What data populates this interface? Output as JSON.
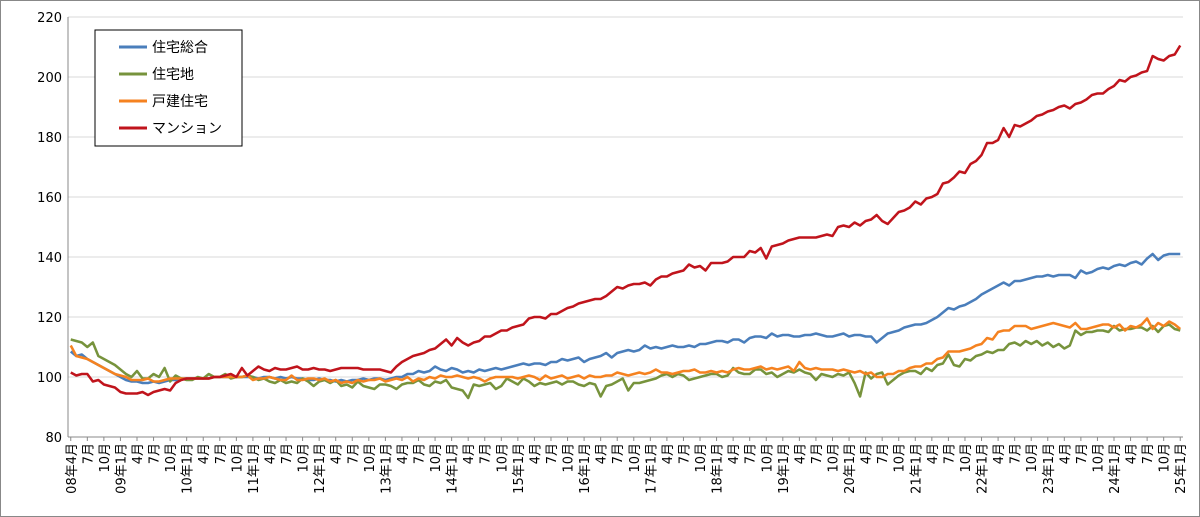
{
  "chart_data": {
    "type": "line",
    "categories": [
      "08年4月",
      null,
      null,
      "7月",
      null,
      null,
      "10月",
      null,
      null,
      "09年1月",
      null,
      null,
      "4月",
      null,
      null,
      "7月",
      null,
      null,
      "10月",
      null,
      null,
      "10年1月",
      null,
      null,
      "4月",
      null,
      null,
      "7月",
      null,
      null,
      "10月",
      null,
      null,
      "11年1月",
      null,
      null,
      "4月",
      null,
      null,
      "7月",
      null,
      null,
      "10月",
      null,
      null,
      "12年1月",
      null,
      null,
      "4月",
      null,
      null,
      "7月",
      null,
      null,
      "10月",
      null,
      null,
      "13年1月",
      null,
      null,
      "4月",
      null,
      null,
      "7月",
      null,
      null,
      "10月",
      null,
      null,
      "14年1月",
      null,
      null,
      "4月",
      null,
      null,
      "7月",
      null,
      null,
      "10月",
      null,
      null,
      "15年1月",
      null,
      null,
      "4月",
      null,
      null,
      "7月",
      null,
      null,
      "10月",
      null,
      null,
      "16年1月",
      null,
      null,
      "4月",
      null,
      null,
      "7月",
      null,
      null,
      "10月",
      null,
      null,
      "17年1月",
      null,
      null,
      "4月",
      null,
      null,
      "7月",
      null,
      null,
      "10月",
      null,
      null,
      "18年1月",
      null,
      null,
      "4月",
      null,
      null,
      "7月",
      null,
      null,
      "10月",
      null,
      null,
      "19年1月",
      null,
      null,
      "4月",
      null,
      null,
      "7月",
      null,
      null,
      "10月",
      null,
      null,
      "20年1月",
      null,
      null,
      "4月",
      null,
      null,
      "7月",
      null,
      null,
      "10月",
      null,
      null,
      "21年1月",
      null,
      null,
      "4月",
      null,
      null,
      "7月",
      null,
      null,
      "10月",
      null,
      null,
      "22年1月",
      null,
      null,
      "4月",
      null,
      null,
      "7月",
      null,
      null,
      "10月",
      null,
      null,
      "23年1月",
      null,
      null,
      "4月",
      null,
      null,
      "7月",
      null,
      null,
      "10月",
      null,
      null,
      "24年1月",
      null,
      null,
      "4月",
      null,
      null,
      "7月",
      null,
      null,
      "10月",
      null,
      null,
      "25年1月"
    ],
    "series": [
      {
        "name": "住宅総合",
        "color": "#4a7ebb",
        "values": [
          108.5,
          107,
          107.5,
          106,
          105,
          104,
          103,
          102,
          101,
          100,
          99,
          98.5,
          98.5,
          98,
          98,
          98.5,
          98,
          98.5,
          99,
          99,
          99.5,
          99.5,
          99.5,
          99.5,
          99.5,
          99.5,
          100,
          100,
          100,
          100,
          100,
          100,
          100,
          100,
          99.5,
          100,
          100,
          99.5,
          100,
          99.5,
          100,
          99.5,
          99.5,
          99,
          99,
          99.5,
          99,
          99,
          98.5,
          99,
          98.5,
          99,
          99,
          99.5,
          99,
          99.5,
          99.5,
          99,
          99.5,
          100,
          100,
          101,
          101,
          102,
          101.5,
          102,
          103.5,
          102.5,
          102,
          103,
          102.5,
          101.5,
          102,
          101.5,
          102.5,
          102,
          102.5,
          103,
          102.5,
          103,
          103.5,
          104,
          104.5,
          104,
          104.5,
          104.5,
          104,
          105,
          105,
          106,
          105.5,
          106,
          106.5,
          105,
          106,
          106.5,
          107,
          108,
          106.5,
          108,
          108.5,
          109,
          108.5,
          109,
          110.5,
          109.5,
          110,
          109.5,
          110,
          110.5,
          110,
          110,
          110.5,
          110,
          111,
          111,
          111.5,
          112,
          112,
          111.5,
          112.5,
          112.5,
          111.5,
          113,
          113.5,
          113.5,
          113,
          114.5,
          113.5,
          114,
          114,
          113.5,
          113.5,
          114,
          114,
          114.5,
          114,
          113.5,
          113.5,
          114,
          114.5,
          113.5,
          114,
          114,
          113.5,
          113.5,
          111.5,
          113,
          114.5,
          115,
          115.5,
          116.5,
          117,
          117.5,
          117.5,
          118,
          119,
          120,
          121.5,
          123,
          122.5,
          123.5,
          124,
          125,
          126,
          127.5,
          128.5,
          129.5,
          130.5,
          131.5,
          130.5,
          132,
          132,
          132.5,
          133,
          133.5,
          133.5,
          134,
          133.5,
          134,
          134,
          134,
          133,
          135.5,
          134.5,
          135,
          136,
          136.5,
          136,
          137,
          137.5,
          137,
          138,
          138.5,
          137.5,
          139.5,
          141,
          139,
          140.5,
          141,
          141,
          141
        ]
      },
      {
        "name": "住宅地",
        "color": "#77933c",
        "values": [
          112.5,
          112,
          111.5,
          110,
          111.5,
          107,
          106,
          105,
          104,
          102.5,
          101,
          100,
          102,
          99.5,
          99.5,
          101,
          100,
          103,
          98.5,
          100.5,
          99.5,
          99,
          99,
          100,
          99.5,
          101,
          100,
          100,
          101,
          99.5,
          100,
          100,
          100.5,
          100,
          99,
          99.5,
          98.5,
          98,
          99,
          98,
          98.5,
          98,
          99.5,
          98.5,
          97,
          98.5,
          99,
          98,
          99,
          97,
          97.5,
          96.5,
          98.5,
          97,
          96.5,
          96,
          97.5,
          97.5,
          97,
          96,
          97.5,
          98,
          98,
          99,
          97.5,
          97,
          98.5,
          98,
          99,
          96.5,
          96,
          95.5,
          93,
          97.5,
          97,
          97.5,
          98,
          96,
          97,
          99.5,
          98.5,
          97.5,
          99.5,
          98.5,
          97,
          98,
          97.5,
          98,
          98.5,
          97.5,
          98.5,
          98.5,
          97.5,
          97,
          98,
          97.5,
          93.5,
          97,
          97.5,
          98.5,
          99.5,
          95.5,
          98,
          98,
          98.5,
          99,
          99.5,
          100.5,
          101,
          100,
          101,
          100.5,
          99,
          99.5,
          100,
          100.5,
          101,
          101,
          100,
          100.5,
          103,
          101.5,
          101,
          101,
          102.5,
          102.5,
          101,
          101.5,
          100,
          101,
          102,
          101.5,
          102.5,
          101.5,
          101,
          99,
          101,
          100.5,
          100,
          101,
          100.5,
          101.5,
          98,
          93.5,
          101.5,
          99.5,
          101,
          101.5,
          97.5,
          99,
          100.5,
          101.5,
          102,
          102,
          101,
          103,
          102,
          104,
          104.5,
          107.5,
          104,
          103.5,
          106,
          105.5,
          107,
          107.5,
          108.5,
          108,
          109,
          109,
          111,
          111.5,
          110.5,
          112,
          111,
          112,
          110.5,
          111.5,
          110,
          111,
          109.5,
          110.5,
          115.5,
          114,
          115,
          115,
          115.5,
          115.5,
          115,
          117,
          115.5,
          116,
          116,
          116.5,
          116.5,
          115.5,
          117,
          115,
          117,
          117.5,
          116,
          115.5
        ]
      },
      {
        "name": "戸建住宅",
        "color": "#f58220",
        "values": [
          110.5,
          107,
          106.5,
          106,
          105,
          104,
          103,
          102,
          101,
          100.5,
          100,
          99,
          99,
          99,
          99.5,
          98.5,
          98.5,
          99,
          99.5,
          99.5,
          99.5,
          99.5,
          99.5,
          99.5,
          99.5,
          99.5,
          100,
          100,
          100,
          100,
          100,
          100,
          100.5,
          99,
          99.5,
          99.5,
          100,
          99.5,
          99,
          99,
          100.5,
          99,
          99,
          99.5,
          99.5,
          99,
          99.5,
          98.5,
          99,
          98,
          98.5,
          98,
          99,
          98.5,
          99,
          99,
          99.5,
          98.5,
          99,
          99.5,
          99,
          100,
          98.5,
          99.5,
          99,
          100,
          99.5,
          100.5,
          100,
          100,
          100.5,
          100,
          99.5,
          100,
          99.5,
          98.5,
          99.5,
          100,
          100,
          100,
          100,
          99.5,
          100,
          100.5,
          100,
          99,
          100.5,
          99.5,
          100,
          100.5,
          99.5,
          100,
          100.5,
          99.5,
          100.5,
          100,
          100,
          100.5,
          100.5,
          101.5,
          101,
          100.5,
          101,
          101.5,
          101,
          101.5,
          102.5,
          101.5,
          101.5,
          101,
          101.5,
          102,
          102,
          102.5,
          101.5,
          101.5,
          102,
          101.5,
          102,
          101.5,
          102.5,
          103,
          102.5,
          102.5,
          103,
          103.5,
          102.5,
          103,
          102.5,
          103,
          103.5,
          102,
          105,
          103,
          102.5,
          103,
          102.5,
          102.5,
          102.5,
          102,
          102.5,
          102,
          101.5,
          102,
          101,
          101.5,
          100,
          100,
          101,
          101,
          102,
          102,
          103,
          103.5,
          103.5,
          104.5,
          104.5,
          106,
          106.5,
          108.5,
          108.5,
          108.5,
          109,
          109.5,
          110.5,
          111,
          113,
          112.5,
          115,
          115.5,
          115.5,
          117,
          117,
          117,
          116,
          116.5,
          117,
          117.5,
          118,
          117.5,
          117,
          116.5,
          118,
          116,
          116,
          116.5,
          117,
          117.5,
          117.5,
          116.5,
          117.5,
          115.5,
          117,
          116.5,
          117.5,
          119.5,
          116,
          118,
          117,
          118.5,
          117.5,
          116
        ]
      },
      {
        "name": "マンション",
        "color": "#c0141c",
        "values": [
          101.5,
          100.5,
          101,
          101,
          98.5,
          99,
          97.5,
          97,
          96.5,
          95,
          94.5,
          94.5,
          94.5,
          95,
          94,
          95,
          95.5,
          96,
          95.5,
          98,
          99,
          99.5,
          99.5,
          99.5,
          99.5,
          99.5,
          100,
          100,
          100.5,
          101,
          100,
          103,
          100.5,
          102,
          103.5,
          102.5,
          102,
          103,
          102.5,
          102.5,
          103,
          103.5,
          102.5,
          102.5,
          103,
          102.5,
          102.5,
          102,
          102.5,
          103,
          103,
          103,
          103,
          102.5,
          102.5,
          102.5,
          102.5,
          102,
          101.5,
          103.5,
          105,
          106,
          107,
          107.5,
          108,
          109,
          109.5,
          111,
          112.5,
          110.5,
          113,
          111.5,
          110.5,
          111.5,
          112,
          113.5,
          113.5,
          114.5,
          115.5,
          115.5,
          116.5,
          117,
          117.5,
          119.5,
          120,
          120,
          119.5,
          121,
          121,
          122,
          123,
          123.5,
          124.5,
          125,
          125.5,
          126,
          126,
          127,
          128.5,
          130,
          129.5,
          130.5,
          131,
          131,
          131.5,
          130.5,
          132.5,
          133.5,
          133.5,
          134.5,
          135,
          135.5,
          137.5,
          136.5,
          137,
          135.5,
          138,
          138,
          138,
          138.5,
          140,
          140,
          140,
          142,
          141.5,
          143,
          139.5,
          143.5,
          144,
          144.5,
          145.5,
          146,
          146.5,
          146.5,
          146.5,
          146.5,
          147,
          147.5,
          147,
          150,
          150.5,
          150,
          151.5,
          150.5,
          152,
          152.5,
          154,
          152,
          151,
          153,
          155,
          155.5,
          156.5,
          158.5,
          157.5,
          159.5,
          160,
          161,
          164.5,
          165,
          166.5,
          168.5,
          168,
          171,
          172,
          174,
          178,
          178,
          179,
          183,
          180,
          184,
          183.5,
          184.5,
          185.5,
          187,
          187.5,
          188.5,
          189,
          190,
          190.5,
          189.5,
          191,
          191.5,
          192.5,
          194,
          194.5,
          194.5,
          196,
          197,
          199,
          198.5,
          200,
          200.5,
          201.5,
          202,
          207,
          206,
          205.5,
          207,
          207.5,
          210.5
        ]
      }
    ],
    "ylim": [
      80,
      220
    ],
    "yticks": [
      80,
      100,
      120,
      140,
      160,
      180,
      200,
      220
    ],
    "grid": true,
    "legend": "upper left"
  }
}
